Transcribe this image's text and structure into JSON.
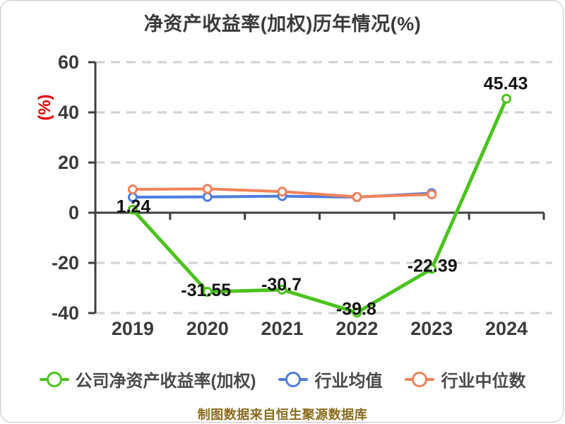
{
  "title": "净资产收益率(加权)历年情况(%)",
  "footer": "制图数据来自恒生聚源数据库",
  "colors": {
    "company": "#4bc31d",
    "industry_avg": "#4d7de0",
    "industry_median": "#f0835a",
    "axis": "#3f3f3f",
    "tick_label": "#3b3b3b",
    "grid": "#d2d2d2",
    "value_label": "#121212",
    "unit_label": "#e60000",
    "title_text": "#3a3a3a",
    "legend_text": "#4a4a4a",
    "footer_text": "#8a6c1e"
  },
  "chart_data": {
    "type": "line",
    "title": "净资产收益率(加权)历年情况(%)",
    "xlabel": "",
    "ylabel": "(%)",
    "categories": [
      "2019",
      "2020",
      "2021",
      "2022",
      "2023",
      "2024"
    ],
    "y_ticks": [
      "60",
      "40",
      "20",
      "0",
      "-20",
      "-40"
    ],
    "y_tick_values": [
      60,
      40,
      20,
      0,
      -20,
      -40
    ],
    "ylim": [
      -40,
      60
    ],
    "grid": "horizontal-dashed",
    "legend_position": "bottom",
    "series": [
      {
        "name": "行业均值",
        "color": "#4d7de0",
        "values": [
          6.2,
          6.3,
          6.6,
          6.2,
          7.8
        ],
        "show_labels": false
      },
      {
        "name": "行业中位数",
        "color": "#f0835a",
        "values": [
          9.3,
          9.5,
          8.4,
          6.3,
          7.3
        ],
        "show_labels": false
      },
      {
        "name": "公司净资产收益率(加权)",
        "color": "#4bc31d",
        "values": [
          1.24,
          -31.55,
          -30.7,
          -39.8,
          -22.39,
          45.43
        ],
        "labels": [
          "1.24",
          "-31.55",
          "-30.7",
          "-39.8",
          "-22.39",
          "45.43"
        ],
        "label_offsets": [
          [
            1,
            -5
          ],
          [
            -2,
            -3
          ],
          [
            -1,
            -8
          ],
          [
            -1,
            -6
          ],
          [
            1,
            -5
          ],
          [
            -1,
            -22
          ]
        ],
        "show_labels": true
      }
    ]
  },
  "legend": {
    "items": [
      {
        "label": "公司净资产收益率(加权)",
        "color": "#4bc31d"
      },
      {
        "label": "行业均值",
        "color": "#4d7de0"
      },
      {
        "label": "行业中位数",
        "color": "#f0835a"
      }
    ]
  }
}
